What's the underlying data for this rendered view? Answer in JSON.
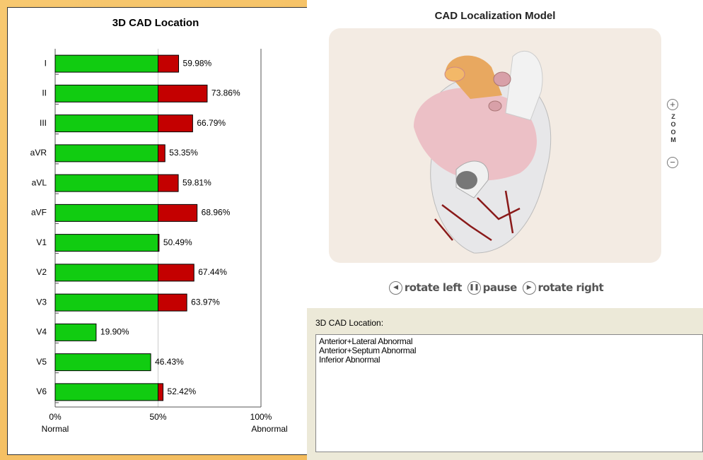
{
  "chart_data": {
    "type": "hbar",
    "title": "3D CAD Location",
    "categories": [
      "I",
      "II",
      "III",
      "aVR",
      "aVL",
      "aVF",
      "V1",
      "V2",
      "V3",
      "V4",
      "V5",
      "V6"
    ],
    "values": [
      59.98,
      73.86,
      66.79,
      53.35,
      59.81,
      68.96,
      50.49,
      67.44,
      63.97,
      19.9,
      46.43,
      52.42
    ],
    "value_labels": [
      "59.98%",
      "73.86%",
      "66.79%",
      "53.35%",
      "59.81%",
      "68.96%",
      "50.49%",
      "67.44%",
      "63.97%",
      "19.90%",
      "46.43%",
      "52.42%"
    ],
    "xlim": [
      0,
      100
    ],
    "xticks": [
      {
        "value": 0,
        "label": "0%"
      },
      {
        "value": 50,
        "label": "50%"
      },
      {
        "value": 100,
        "label": "100%"
      }
    ],
    "x_label_left": "Normal",
    "x_label_right": "Abnormal",
    "colors": {
      "normal": "#11cc11",
      "abnormal": "#c40000"
    },
    "grid": true
  },
  "model": {
    "title": "CAD Localization Model",
    "zoom": "ZOOM",
    "controls": {
      "left": "rotate left",
      "pause": "pause",
      "right": "rotate right"
    }
  },
  "location": {
    "label": "3D CAD Location:",
    "lines": [
      "Anterior+Lateral Abnormal",
      "Anterior+Septum Abnormal",
      "Inferior Abnormal"
    ]
  }
}
